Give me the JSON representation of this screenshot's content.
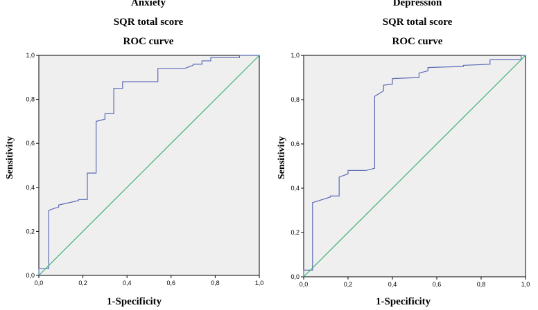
{
  "chart_data": [
    {
      "type": "line",
      "titles": [
        "Anxiety",
        "SQR total score",
        "ROC curve"
      ],
      "xlabel": "1-Specificity",
      "ylabel": "Sensitivity",
      "xlim": [
        0,
        1
      ],
      "ylim": [
        0,
        1
      ],
      "xticks": [
        "0,0",
        "0,2",
        "0,4",
        "0,6",
        "0,8",
        "1,0"
      ],
      "yticks": [
        "0,0",
        "0,2",
        "0,4",
        "0,6",
        "0,8",
        "1,0"
      ],
      "colors": {
        "roc": "#5b6ab5",
        "reference": "#3cb371",
        "plot_bg": "#efefef"
      },
      "series": [
        {
          "name": "ROC",
          "x": [
            0,
            0,
            0.045,
            0.045,
            0.07,
            0.09,
            0.09,
            0.18,
            0.18,
            0.22,
            0.22,
            0.26,
            0.26,
            0.3,
            0.3,
            0.34,
            0.34,
            0.38,
            0.38,
            0.54,
            0.54,
            0.66,
            0.7,
            0.7,
            0.74,
            0.74,
            0.78,
            0.78,
            0.91,
            0.91,
            1
          ],
          "y": [
            0,
            0.03,
            0.03,
            0.295,
            0.305,
            0.31,
            0.32,
            0.34,
            0.345,
            0.345,
            0.465,
            0.465,
            0.7,
            0.71,
            0.735,
            0.735,
            0.85,
            0.85,
            0.88,
            0.88,
            0.94,
            0.94,
            0.955,
            0.96,
            0.96,
            0.975,
            0.975,
            0.99,
            0.99,
            1,
            1
          ]
        },
        {
          "name": "Reference",
          "x": [
            0,
            1
          ],
          "y": [
            0,
            1
          ]
        }
      ]
    },
    {
      "type": "line",
      "titles": [
        "Depression",
        "SQR total score",
        "ROC curve"
      ],
      "xlabel": "1-Specificity",
      "ylabel": "Sensitivity",
      "xlim": [
        0,
        1
      ],
      "ylim": [
        0,
        1
      ],
      "xticks": [
        "0,0",
        "0,2",
        "0,4",
        "0,6",
        "0,8",
        "1,0"
      ],
      "yticks": [
        "0,0",
        "0,2",
        "0,4",
        "0,6",
        "0,8",
        "1,0"
      ],
      "colors": {
        "roc": "#5b6ab5",
        "reference": "#3cb371",
        "plot_bg": "#efefef"
      },
      "series": [
        {
          "name": "ROC",
          "x": [
            0,
            0,
            0.04,
            0.04,
            0.12,
            0.12,
            0.16,
            0.16,
            0.2,
            0.2,
            0.28,
            0.32,
            0.32,
            0.36,
            0.36,
            0.4,
            0.4,
            0.52,
            0.52,
            0.56,
            0.56,
            0.72,
            0.72,
            0.84,
            0.84,
            0.98,
            0.98,
            1
          ],
          "y": [
            0,
            0.03,
            0.03,
            0.335,
            0.36,
            0.365,
            0.365,
            0.45,
            0.465,
            0.48,
            0.48,
            0.49,
            0.815,
            0.84,
            0.865,
            0.87,
            0.895,
            0.9,
            0.92,
            0.93,
            0.945,
            0.95,
            0.955,
            0.96,
            0.98,
            0.98,
            1,
            1
          ]
        },
        {
          "name": "Reference",
          "x": [
            0,
            1
          ],
          "y": [
            0,
            1
          ]
        }
      ]
    }
  ]
}
